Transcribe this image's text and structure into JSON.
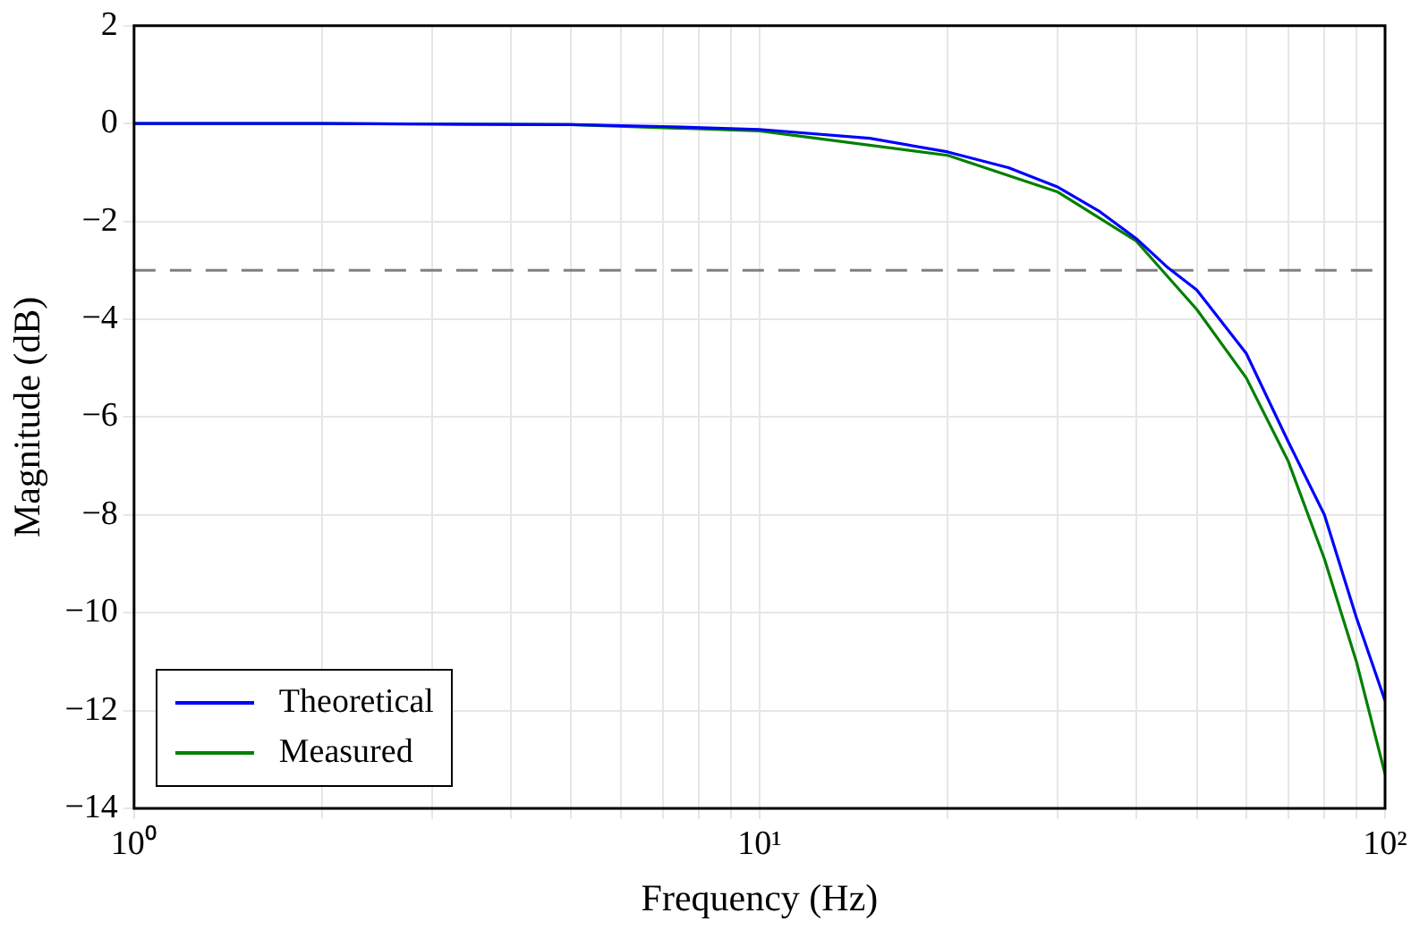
{
  "chart_data": {
    "type": "line",
    "xlabel": "Frequency (Hz)",
    "ylabel": "Magnitude (dB)",
    "log": "x",
    "xlim": [
      1,
      100
    ],
    "ylim": [
      -14,
      2
    ],
    "xticks": [
      {
        "value": 1,
        "label": "10⁰"
      },
      {
        "value": 2,
        "label": null
      },
      {
        "value": 3,
        "label": null
      },
      {
        "value": 4,
        "label": null
      },
      {
        "value": 5,
        "label": null
      },
      {
        "value": 6,
        "label": null
      },
      {
        "value": 7,
        "label": null
      },
      {
        "value": 8,
        "label": null
      },
      {
        "value": 9,
        "label": null
      },
      {
        "value": 10,
        "label": "10¹"
      },
      {
        "value": 20,
        "label": null
      },
      {
        "value": 30,
        "label": null
      },
      {
        "value": 40,
        "label": null
      },
      {
        "value": 50,
        "label": null
      },
      {
        "value": 60,
        "label": null
      },
      {
        "value": 70,
        "label": null
      },
      {
        "value": 80,
        "label": null
      },
      {
        "value": 90,
        "label": null
      },
      {
        "value": 100,
        "label": "10²"
      }
    ],
    "yticks": [
      -14,
      -12,
      -10,
      -8,
      -6,
      -4,
      -2,
      0,
      2
    ],
    "grid": true,
    "legend": "bottom left",
    "marker": "none",
    "line_style": "solid",
    "series": [
      {
        "name": "Theoretical",
        "color": "#0000ff",
        "x": [
          1,
          2,
          3,
          5,
          7,
          10,
          15,
          20,
          25,
          30,
          35,
          40,
          45,
          50,
          60,
          70,
          80,
          90,
          100
        ],
        "values": [
          0,
          0,
          -0.01,
          -0.02,
          -0.06,
          -0.12,
          -0.3,
          -0.58,
          -0.9,
          -1.3,
          -1.8,
          -2.35,
          -2.95,
          -3.4,
          -4.7,
          -6.5,
          -8.0,
          -10.1,
          -11.8
        ]
      },
      {
        "name": "Measured",
        "color": "#008000",
        "x": [
          1,
          2,
          5,
          10,
          20,
          30,
          40,
          50,
          60,
          70,
          80,
          90,
          100
        ],
        "values": [
          0,
          0,
          -0.02,
          -0.15,
          -0.65,
          -1.4,
          -2.4,
          -3.8,
          -5.2,
          -6.9,
          -8.9,
          -11.0,
          -13.3
        ]
      }
    ],
    "ref_lines": [
      {
        "axis": "y",
        "value": -3,
        "color": "#808080",
        "line_style": "dashed"
      }
    ]
  }
}
